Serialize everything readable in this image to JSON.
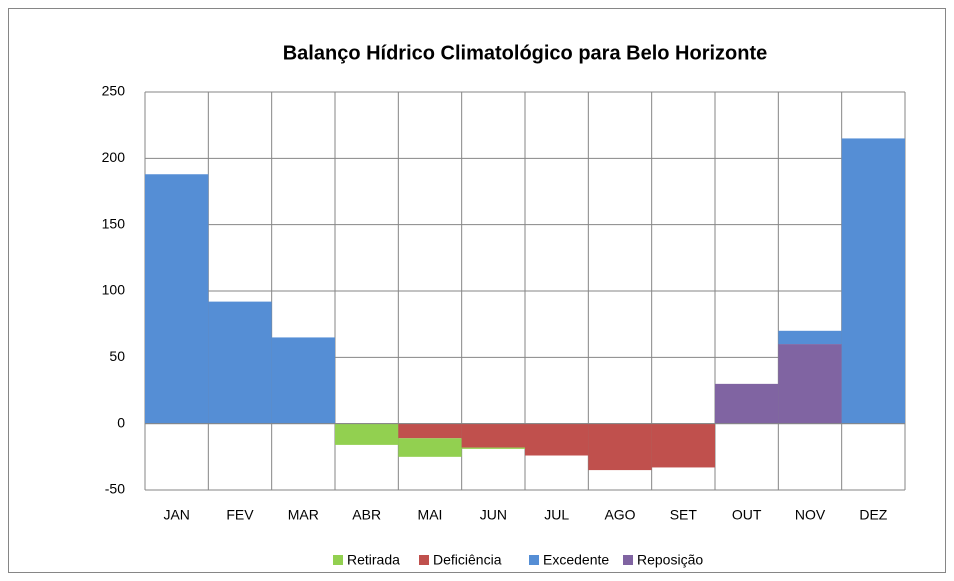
{
  "chart_data": {
    "type": "bar",
    "stacked": true,
    "title": "Balanço Hídrico  Climatológico para Belo Horizonte",
    "categories": [
      "JAN",
      "FEV",
      "MAR",
      "ABR",
      "MAI",
      "JUN",
      "JUL",
      "AGO",
      "SET",
      "OUT",
      "NOV",
      "DEZ"
    ],
    "series": [
      {
        "name": "Retirada",
        "color": "#92d050",
        "values": [
          0,
          0,
          0,
          -16,
          -14,
          -1,
          0,
          0,
          0,
          0,
          0,
          0
        ]
      },
      {
        "name": "Deficiência",
        "color": "#c0504d",
        "values": [
          0,
          0,
          0,
          0,
          -11,
          -18,
          -24,
          -35,
          -33,
          0,
          0,
          0
        ]
      },
      {
        "name": "Excedente",
        "color": "#558ed5",
        "values": [
          188,
          92,
          65,
          0,
          0,
          0,
          0,
          0,
          0,
          0,
          10,
          215
        ]
      },
      {
        "name": "Reposição",
        "color": "#8064a2",
        "values": [
          0,
          0,
          0,
          0,
          0,
          0,
          0,
          0,
          0,
          30,
          60,
          0
        ]
      }
    ],
    "ylim": [
      -50,
      250
    ],
    "yticks": [
      -50,
      0,
      50,
      100,
      150,
      200,
      250
    ],
    "grid": true,
    "legend": "bottom"
  }
}
